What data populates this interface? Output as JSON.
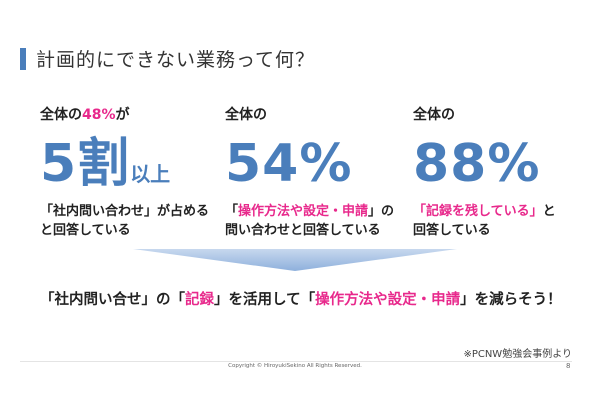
{
  "title": "計画的にできない業務って何？",
  "stats": [
    {
      "label_pre": "全体の",
      "label_highlight": "48%",
      "label_post": "が",
      "big_value": "5割",
      "big_unit": "以上",
      "desc_line1_pre": "「社内問い合わせ」が占める",
      "desc_line1_highlight": "",
      "desc_line1_post": "",
      "desc_line2": "と回答している"
    },
    {
      "label_pre": "全体の",
      "label_highlight": "",
      "label_post": "",
      "big_value": "54%",
      "big_unit": "",
      "desc_line1_pre": "「",
      "desc_line1_highlight": "操作方法や設定・申請",
      "desc_line1_post": "」の",
      "desc_line2": "問い合わせと回答している"
    },
    {
      "label_pre": "全体の",
      "label_highlight": "",
      "label_post": "",
      "big_value": "88%",
      "big_unit": "",
      "desc_line1_pre": "",
      "desc_line1_highlight": "「記録を残している」",
      "desc_line1_post": "と",
      "desc_line2": "回答している"
    }
  ],
  "conclusion": {
    "part1": "「社内問い合せ」の「",
    "highlight1": "記録",
    "part2": "」を活用して「",
    "highlight2": "操作方法や設定・申請",
    "part3": "」を減らそう！"
  },
  "source": "※PCNW勉強会事例より",
  "copyright": "Copyright © HiroyukiSekino All Rights Reserved.",
  "page_number": "8",
  "colors": {
    "accent": "#4a7ebb",
    "highlight": "#e8298c"
  }
}
